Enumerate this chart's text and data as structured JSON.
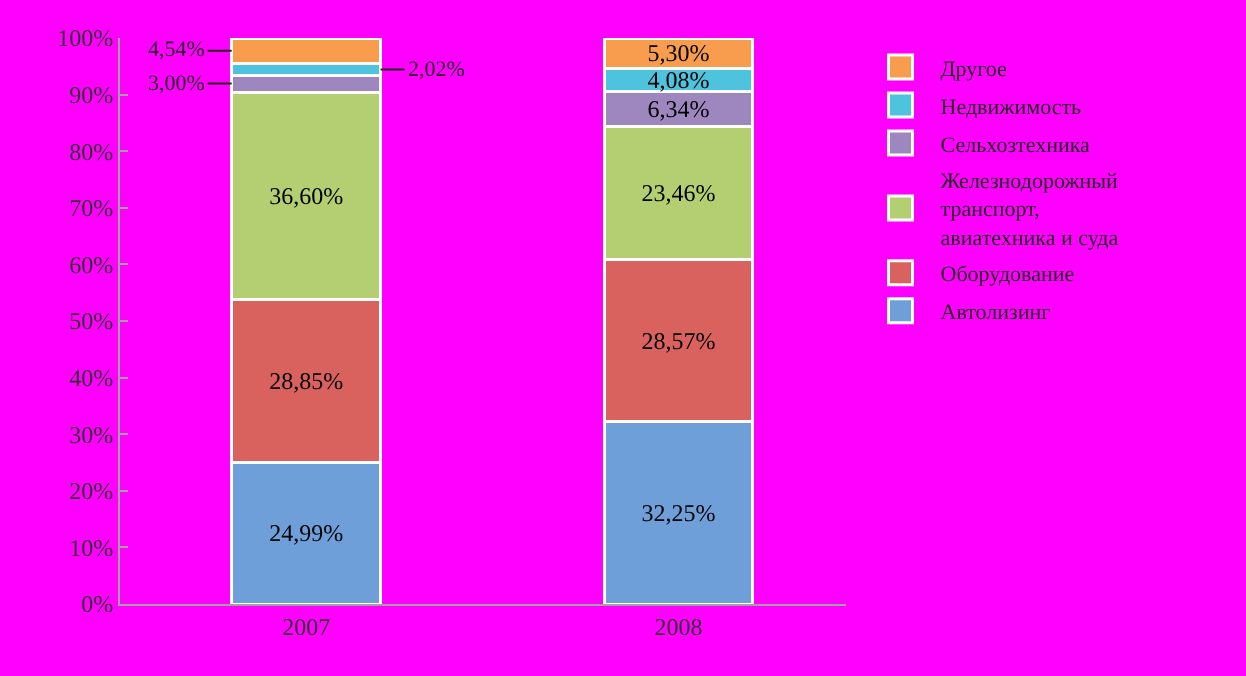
{
  "chart_data": {
    "type": "bar",
    "stacked": true,
    "categories": [
      "2007",
      "2008"
    ],
    "series": [
      {
        "name": "Автолизинг",
        "color": "#6f9fd8",
        "values": [
          24.99,
          32.25
        ],
        "value_labels": [
          "24,99%",
          "32,25%"
        ]
      },
      {
        "name": "Оборудование",
        "color": "#d9625e",
        "values": [
          28.85,
          28.57
        ],
        "value_labels": [
          "28,85%",
          "28,57%"
        ]
      },
      {
        "name": "Железнодорожный транспорт, авиатехника и суда",
        "color": "#b3cf72",
        "values": [
          36.6,
          23.46
        ],
        "value_labels": [
          "36,60%",
          "23,46%"
        ]
      },
      {
        "name": "Сельхозтехника",
        "color": "#9e86bf",
        "values": [
          3.0,
          6.34
        ],
        "value_labels": [
          "3,00%",
          "6,34%"
        ]
      },
      {
        "name": "Недвижимость",
        "color": "#4ec3dd",
        "values": [
          2.02,
          4.08
        ],
        "value_labels": [
          "2,02%",
          "4,08%"
        ]
      },
      {
        "name": "Другое",
        "color": "#f89c4e",
        "values": [
          4.54,
          5.3
        ],
        "value_labels": [
          "4,54%",
          "5,30%"
        ]
      }
    ],
    "ylim": [
      0,
      100
    ],
    "yticks": [
      {
        "value": 0,
        "label": "0%"
      },
      {
        "value": 10,
        "label": "10%"
      },
      {
        "value": 20,
        "label": "20%"
      },
      {
        "value": 30,
        "label": "30%"
      },
      {
        "value": 40,
        "label": "40%"
      },
      {
        "value": 50,
        "label": "50%"
      },
      {
        "value": 60,
        "label": "60%"
      },
      {
        "value": 70,
        "label": "70%"
      },
      {
        "value": 80,
        "label": "80%"
      },
      {
        "value": 90,
        "label": "90%"
      },
      {
        "value": 100,
        "label": "100%"
      }
    ],
    "grid": false,
    "legend": "right"
  }
}
